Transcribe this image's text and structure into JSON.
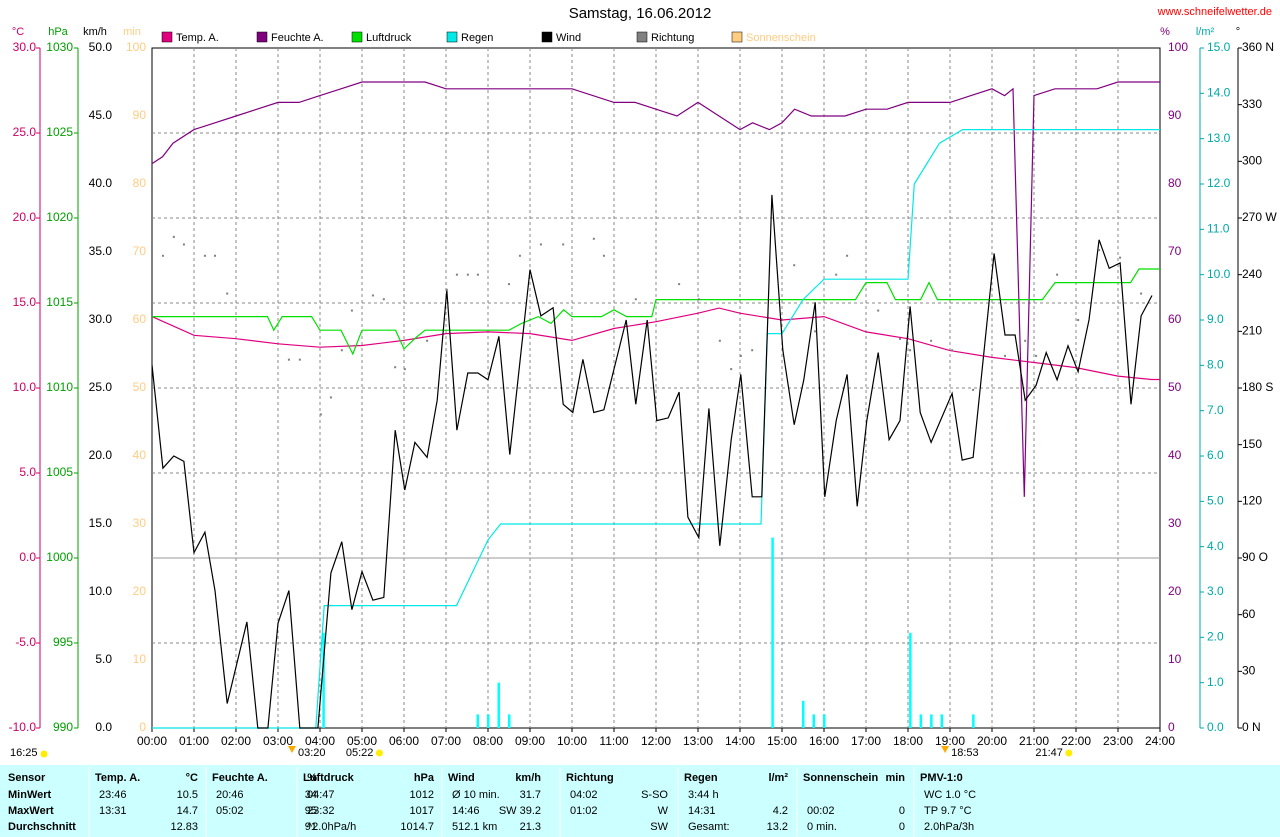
{
  "chart_data": {
    "type": "line",
    "title": "Samstag, 16.06.2012",
    "source": "www.schneifelwetter.de",
    "day_length": "16:25",
    "xlim": [
      0,
      24
    ],
    "xticks": [
      {
        "value": 0,
        "label": "00:00"
      },
      {
        "value": 1,
        "label": "01:00"
      },
      {
        "value": 2,
        "label": "02:00"
      },
      {
        "value": 3,
        "label": "03:00"
      },
      {
        "value": 4,
        "label": "04:00"
      },
      {
        "value": 5,
        "label": "05:00"
      },
      {
        "value": 6,
        "label": "06:00"
      },
      {
        "value": 7,
        "label": "07:00"
      },
      {
        "value": 8,
        "label": "08:00"
      },
      {
        "value": 9,
        "label": "09:00"
      },
      {
        "value": 10,
        "label": "10:00"
      },
      {
        "value": 11,
        "label": "11:00"
      },
      {
        "value": 12,
        "label": "12:00"
      },
      {
        "value": 13,
        "label": "13:00"
      },
      {
        "value": 14,
        "label": "14:00"
      },
      {
        "value": 15,
        "label": "15:00"
      },
      {
        "value": 16,
        "label": "16:00"
      },
      {
        "value": 17,
        "label": "17:00"
      },
      {
        "value": 18,
        "label": "18:00"
      },
      {
        "value": 19,
        "label": "19:00"
      },
      {
        "value": 20,
        "label": "20:00"
      },
      {
        "value": 21,
        "label": "21:00"
      },
      {
        "value": 22,
        "label": "22:00"
      },
      {
        "value": 23,
        "label": "23:00"
      },
      {
        "value": 24,
        "label": "24:00"
      }
    ],
    "grid": true,
    "grid_axis": 0,
    "zero_line": true,
    "axes": [
      {
        "unit": "°C",
        "color": "#cc0066",
        "lim": [
          -10,
          30
        ],
        "ticks": [
          {
            "value": -10,
            "label": "-10.0"
          },
          {
            "value": -5,
            "label": "-5.0"
          },
          {
            "value": 0,
            "label": "0.0"
          },
          {
            "value": 5,
            "label": "5.0"
          },
          {
            "value": 10,
            "label": "10.0"
          },
          {
            "value": 15,
            "label": "15.0"
          },
          {
            "value": 20,
            "label": "20.0"
          },
          {
            "value": 25,
            "label": "25.0"
          },
          {
            "value": 30,
            "label": "30.0"
          }
        ]
      },
      {
        "unit": "hPa",
        "color": "#00a000",
        "lim": [
          990,
          1030
        ],
        "ticks": [
          990,
          995,
          1000,
          1005,
          1010,
          1015,
          1020,
          1025,
          1030
        ]
      },
      {
        "unit": "km/h",
        "color": "#000000",
        "lim": [
          0,
          50
        ],
        "ticks": [
          {
            "value": 0,
            "label": "0.0"
          },
          {
            "value": 5,
            "label": "5.0"
          },
          {
            "value": 10,
            "label": "10.0"
          },
          {
            "value": 15,
            "label": "15.0"
          },
          {
            "value": 20,
            "label": "20.0"
          },
          {
            "value": 25,
            "label": "25.0"
          },
          {
            "value": 30,
            "label": "30.0"
          },
          {
            "value": 35,
            "label": "35.0"
          },
          {
            "value": 40,
            "label": "40.0"
          },
          {
            "value": 45,
            "label": "45.0"
          },
          {
            "value": 50,
            "label": "50.0"
          }
        ]
      },
      {
        "unit": "min",
        "color": "#ffcc80",
        "lim": [
          0,
          100
        ],
        "ticks": [
          0,
          10,
          20,
          30,
          40,
          50,
          60,
          70,
          80,
          90,
          100
        ]
      },
      {
        "unit": "%",
        "color": "#800080",
        "lim": [
          0,
          100
        ],
        "ticks": [
          0,
          10,
          20,
          30,
          40,
          50,
          60,
          70,
          80,
          90,
          100
        ]
      },
      {
        "unit": "l/m²",
        "color": "#00a8a8",
        "lim": [
          0,
          15
        ],
        "ticks": [
          {
            "value": 0,
            "label": "0.0"
          },
          {
            "value": 1,
            "label": "1.0"
          },
          {
            "value": 2,
            "label": "2.0"
          },
          {
            "value": 3,
            "label": "3.0"
          },
          {
            "value": 4,
            "label": "4.0"
          },
          {
            "value": 5,
            "label": "5.0"
          },
          {
            "value": 6,
            "label": "6.0"
          },
          {
            "value": 7,
            "label": "7.0"
          },
          {
            "value": 8,
            "label": "8.0"
          },
          {
            "value": 9,
            "label": "9.0"
          },
          {
            "value": 10,
            "label": "10.0"
          },
          {
            "value": 11,
            "label": "11.0"
          },
          {
            "value": 12,
            "label": "12.0"
          },
          {
            "value": 13,
            "label": "13.0"
          },
          {
            "value": 14,
            "label": "14.0"
          },
          {
            "value": 15,
            "label": "15.0"
          }
        ]
      },
      {
        "unit": "°",
        "color": "#000000",
        "lim": [
          0,
          360
        ],
        "ticks": [
          {
            "value": 0,
            "label": "0 N"
          },
          30,
          60,
          {
            "value": 90,
            "label": "90 O"
          },
          120,
          150,
          {
            "value": 180,
            "label": "180 S"
          },
          210,
          240,
          {
            "value": 270,
            "label": "270 W"
          },
          300,
          330,
          {
            "value": 360,
            "label": "360 N"
          }
        ]
      }
    ],
    "series": [
      {
        "name": "Temp. A.",
        "color": "#e0007f",
        "axis": 0,
        "x": [
          0,
          1,
          2,
          3,
          4,
          5,
          6,
          7,
          8,
          9,
          10,
          11,
          12,
          13,
          13.5,
          14,
          15,
          16,
          17,
          18,
          19,
          20,
          21,
          22,
          23,
          23.8,
          24
        ],
        "values": [
          14.2,
          13.1,
          12.9,
          12.6,
          12.4,
          12.5,
          12.8,
          13.2,
          13.3,
          13.2,
          12.8,
          13.5,
          13.9,
          14.4,
          14.7,
          14.4,
          14.0,
          14.2,
          13.3,
          12.9,
          12.2,
          11.8,
          11.5,
          11.2,
          10.7,
          10.5,
          10.5
        ]
      },
      {
        "name": "Feuchte A.",
        "color": "#800080",
        "axis": 4,
        "x": [
          0,
          0.25,
          0.5,
          1,
          1.5,
          2,
          2.5,
          3,
          3.5,
          4,
          4.5,
          5,
          6,
          6.5,
          7,
          8,
          9,
          10,
          11,
          11.5,
          12,
          12.5,
          13,
          13.5,
          14,
          14.3,
          14.7,
          15,
          15.3,
          15.7,
          16,
          16.5,
          17,
          17.5,
          18,
          18.5,
          19,
          19.5,
          20,
          20.3,
          20.5,
          20.77,
          21,
          21.5,
          22,
          22.5,
          23,
          24
        ],
        "values": [
          83,
          84,
          86,
          88,
          89,
          90,
          91,
          92,
          92,
          93,
          94,
          95,
          95,
          95,
          94,
          94,
          94,
          94,
          92,
          92,
          91,
          90,
          92,
          90,
          88,
          89,
          88,
          89,
          91,
          90,
          90,
          90,
          91,
          91,
          92,
          92,
          92,
          93,
          94,
          93,
          94,
          34,
          93,
          94,
          94,
          94,
          95,
          95
        ]
      },
      {
        "name": "Luftdruck",
        "color": "#00e000",
        "axis": 1,
        "x": [
          0,
          2.75,
          2.9,
          3.1,
          3.8,
          4.0,
          4.5,
          4.78,
          5.0,
          5.8,
          6.0,
          6.3,
          6.5,
          8.5,
          8.8,
          9.2,
          9.5,
          9.8,
          10.0,
          10.7,
          11.0,
          11.3,
          11.9,
          12.0,
          16.75,
          17.0,
          17.5,
          17.7,
          18.3,
          18.5,
          18.7,
          21.2,
          21.5,
          23.3,
          23.5,
          24
        ],
        "values": [
          1014.2,
          1014.2,
          1013.4,
          1014.2,
          1014.2,
          1013.4,
          1013.4,
          1012,
          1013.4,
          1013.4,
          1012.3,
          1013,
          1013.4,
          1013.4,
          1013.8,
          1014.2,
          1013.8,
          1014.6,
          1014.2,
          1014.2,
          1014.6,
          1014.2,
          1014.2,
          1015.2,
          1015.2,
          1016.2,
          1016.2,
          1015.2,
          1015.2,
          1016.2,
          1015.2,
          1015.2,
          1016.2,
          1016.2,
          1017,
          1017
        ]
      },
      {
        "name": "Regen",
        "color": "#00e8e8",
        "axis": 5,
        "x": [
          0,
          3.9,
          4.1,
          7.25,
          8.0,
          8.3,
          14.5,
          14.65,
          15.0,
          15.5,
          16.0,
          18.0,
          18.15,
          18.75,
          19.3,
          24
        ],
        "values": [
          0,
          0,
          2.7,
          2.7,
          4.15,
          4.5,
          4.5,
          8.7,
          8.7,
          9.45,
          9.9,
          9.9,
          12.0,
          12.9,
          13.2,
          13.2
        ]
      },
      {
        "name": "Wind",
        "color": "#000000",
        "axis": 2,
        "x": [
          0,
          0.26,
          0.52,
          0.76,
          1,
          1.26,
          1.5,
          1.79,
          2.26,
          2.52,
          2.76,
          3,
          3.26,
          3.52,
          3.95,
          4.26,
          4.52,
          4.76,
          5,
          5.26,
          5.52,
          5.79,
          6.02,
          6.26,
          6.55,
          6.79,
          7.02,
          7.26,
          7.52,
          7.76,
          8,
          8.26,
          8.52,
          9,
          9.26,
          9.55,
          9.79,
          10.02,
          10.26,
          10.52,
          10.76,
          11.29,
          11.52,
          11.79,
          12.02,
          12.29,
          12.55,
          12.76,
          13.02,
          13.26,
          13.52,
          13.79,
          14.02,
          14.29,
          14.52,
          14.76,
          15.02,
          15.29,
          15.52,
          15.79,
          16.02,
          16.29,
          16.55,
          16.79,
          17.02,
          17.29,
          17.55,
          17.81,
          18.05,
          18.29,
          18.55,
          19.05,
          19.29,
          19.55,
          20.05,
          20.31,
          20.55,
          20.79,
          21.05,
          21.29,
          21.55,
          21.81,
          22.05,
          22.31,
          22.55,
          22.79,
          23.05,
          23.31,
          23.55,
          23.81
        ],
        "values": [
          26.7,
          19.1,
          20,
          19.6,
          12.9,
          14.4,
          10.1,
          1.8,
          7.8,
          0,
          0,
          7.7,
          10.1,
          0,
          0,
          11.4,
          13.7,
          8.7,
          11.5,
          9.4,
          9.6,
          21.9,
          17.5,
          21,
          19.9,
          24.1,
          32.2,
          21.9,
          26.1,
          26.1,
          25.6,
          28.8,
          20.1,
          33.7,
          30.3,
          30.9,
          23.8,
          23.2,
          27.1,
          23.2,
          23.4,
          30,
          23.8,
          30,
          22.6,
          22.8,
          24.7,
          15.5,
          14,
          23.5,
          13.4,
          21.2,
          26,
          17,
          17,
          39.2,
          27.8,
          22.3,
          25.6,
          31.3,
          17,
          22.6,
          26,
          16.3,
          22.6,
          27.6,
          21.2,
          22.6,
          31,
          23.2,
          21,
          24.6,
          19.7,
          19.9,
          34.9,
          28.9,
          28.9,
          24.1,
          25.2,
          27.6,
          25.6,
          28.1,
          26.2,
          30,
          35.9,
          33.8,
          34.2,
          23.8,
          30.3,
          31.8
        ]
      },
      {
        "name": "Richtung",
        "color": "#808080",
        "axis": 6,
        "style": "dots",
        "x": [
          0.26,
          0.52,
          0.76,
          1.26,
          1.5,
          1.79,
          3.26,
          3.52,
          4.02,
          4.26,
          4.52,
          4.76,
          5.26,
          5.52,
          5.79,
          6.02,
          6.55,
          7.02,
          7.26,
          7.52,
          7.76,
          8.5,
          8.76,
          9.26,
          9.79,
          10.52,
          10.76,
          11.52,
          12.55,
          13.02,
          13.52,
          13.79,
          14.02,
          14.29,
          15.29,
          15.79,
          16.29,
          16.55,
          17.29,
          17.81,
          18.05,
          18.55,
          19.05,
          19.55,
          20.31,
          20.79,
          21.05,
          21.55,
          22.05,
          22.55,
          23.05,
          23.55
        ],
        "values": [
          250,
          260,
          256,
          250,
          250,
          230,
          195,
          195,
          166,
          175,
          200,
          221,
          229,
          227,
          191,
          190,
          205,
          232,
          240,
          240,
          240,
          235,
          250,
          256,
          256,
          259,
          250,
          227,
          235,
          227,
          205,
          190,
          197,
          200,
          245,
          210,
          240,
          250,
          221,
          206,
          200,
          205,
          200,
          179,
          197,
          205,
          197,
          240,
          216,
          253,
          249,
          230
        ]
      },
      {
        "name": "Sonnenschein",
        "color": "#ffcc80",
        "axis": 3,
        "x": [],
        "values": []
      }
    ],
    "rain_bars": {
      "color": "#00ffff",
      "axis": 5,
      "x": [
        4.08,
        7.75,
        8.0,
        8.25,
        8.5,
        14.77,
        15.5,
        15.75,
        16.0,
        18.05,
        18.3,
        18.55,
        18.8,
        19.55
      ],
      "values": [
        2.1,
        0.3,
        0.3,
        1.0,
        0.3,
        4.2,
        0.6,
        0.3,
        0.3,
        2.1,
        0.3,
        0.3,
        0.3,
        0.3
      ]
    },
    "sun_events": [
      "03:20",
      "05:22",
      "18:53",
      "21:47"
    ]
  },
  "stats": {
    "labels": [
      "Sensor",
      "MinWert",
      "MaxWert",
      "Durchschnitt"
    ],
    "groups": [
      {
        "title": "Temp. A.",
        "unit": "°C",
        "rows": [
          {
            "time": "23:46",
            "value": "10.5"
          },
          {
            "time": "13:31",
            "value": "14.7"
          },
          {
            "value": "12.83"
          }
        ]
      },
      {
        "title": "Feuchte A.",
        "unit": "%",
        "rows": [
          {
            "time": "20:46",
            "value": "34"
          },
          {
            "time": "05:02",
            "value": "95"
          },
          {
            "value": "91"
          }
        ]
      },
      {
        "title": "Luftdruck",
        "unit": "hPa",
        "rows": [
          {
            "time": "04:47",
            "value": "1012"
          },
          {
            "time": "23:32",
            "value": "1017"
          },
          {
            "time": "^2.0hPa/h",
            "value": "1014.7"
          }
        ]
      },
      {
        "title": "Wind",
        "unit": "km/h",
        "rows": [
          {
            "time": "Ø 10 min.",
            "value": "31.7"
          },
          {
            "time": "14:46",
            "value": "SW 39.2"
          },
          {
            "time": "512.1 km",
            "value": "21.3"
          }
        ]
      },
      {
        "title": "Richtung",
        "rows": [
          {
            "time": "04:02",
            "value": "S-SO"
          },
          {
            "time": "01:02",
            "value": "W"
          },
          {
            "value": "SW"
          }
        ]
      },
      {
        "title": "Regen",
        "unit": "l/m²",
        "rows": [
          {
            "time": "3:44 h"
          },
          {
            "time": "14:31",
            "value": "4.2"
          },
          {
            "time": "Gesamt:",
            "value": "13.2"
          }
        ]
      },
      {
        "title": "Sonnenschein",
        "unit": "min",
        "rows": [
          null,
          {
            "time": "00:02",
            "value": "0"
          },
          {
            "time": "0 min.",
            "value": "0"
          }
        ]
      },
      {
        "title": "PMV-1:0",
        "rows": [
          {
            "time": "WC 1.0 °C"
          },
          {
            "time": "TP 9.7 °C"
          },
          {
            "time": "2.0hPa/3h"
          }
        ]
      }
    ]
  }
}
